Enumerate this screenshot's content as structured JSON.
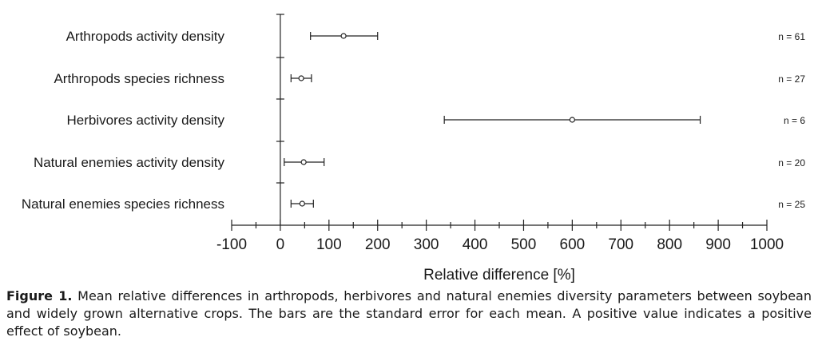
{
  "chart_data": {
    "type": "scatter",
    "orientation": "horizontal",
    "error_bars": "standard error",
    "categories": [
      "Arthropods activity density",
      "Arthropods species richness",
      "Herbivores activity density",
      "Natural enemies activity density",
      "Natural enemies species richness"
    ],
    "means": [
      130,
      43,
      600,
      48,
      45
    ],
    "error_low": [
      62,
      22,
      337,
      8,
      22
    ],
    "error_high": [
      200,
      64,
      863,
      90,
      68
    ],
    "n_labels": [
      "n = 61",
      "n = 27",
      "n = 6",
      "n = 20",
      "n = 25"
    ],
    "xlabel": "Relative difference [%]",
    "xlim": [
      -100,
      1000
    ],
    "xticks": [
      "-100",
      "0",
      "100",
      "200",
      "300",
      "400",
      "500",
      "600",
      "700",
      "800",
      "900",
      "1000"
    ],
    "grid": false,
    "legend": "none"
  },
  "caption": {
    "label": "Figure 1.",
    "text": " Mean relative differences in arthropods, herbivores and natural enemies diversity parameters between soybean and widely grown alternative crops. The bars are the standard error for each mean. A positive value indicates a positive effect of soybean."
  }
}
